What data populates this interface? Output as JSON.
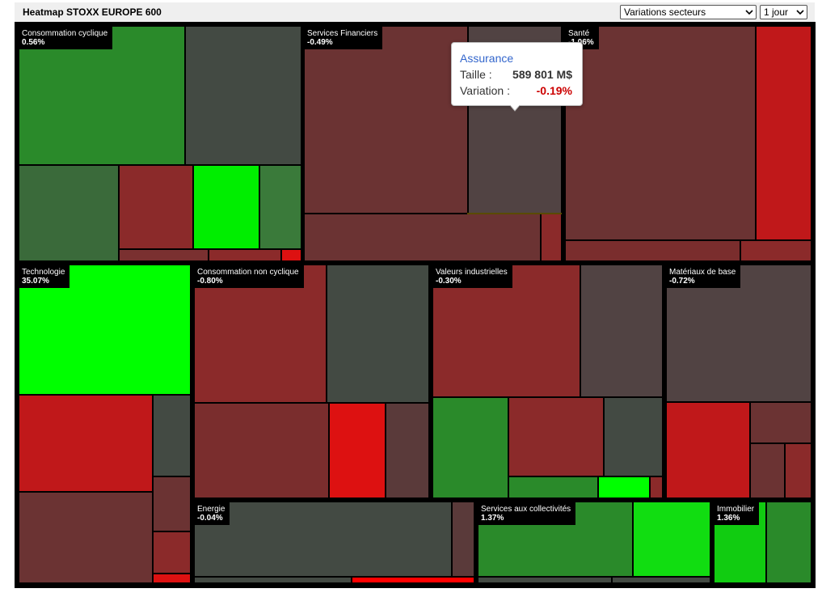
{
  "header": {
    "title": "Heatmap STOXX EUROPE 600"
  },
  "controls": {
    "mode_select": {
      "value": "Variations secteurs",
      "icon": "chevron-down-icon"
    },
    "period_select": {
      "value": "1 jour",
      "icon": "chevron-down-icon"
    }
  },
  "sectors": [
    {
      "name": "Consommation cyclique",
      "change": "0.56%"
    },
    {
      "name": "Services Financiers",
      "change": "-0.49%"
    },
    {
      "name": "Santé",
      "change": "-1.06%"
    },
    {
      "name": "Technologie",
      "change": "35.07%"
    },
    {
      "name": "Consommation non cyclique",
      "change": "-0.80%"
    },
    {
      "name": "Valeurs industrielles",
      "change": "-0.30%"
    },
    {
      "name": "Matériaux de base",
      "change": "-0.72%"
    },
    {
      "name": "Energie",
      "change": "-0.04%"
    },
    {
      "name": "Services aux collectivités",
      "change": "1.37%"
    },
    {
      "name": "Immobilier",
      "change": "1.36%"
    }
  ],
  "tooltip": {
    "title": "Assurance",
    "size_label": "Taille :",
    "size_value": "589 801 M$",
    "variation_label": "Variation :",
    "variation_value": "-0.19%",
    "variation_color": "#cc0000"
  },
  "colors": {
    "strong_up": "#00ff00",
    "up": "#2a8a2a",
    "flat": "#434a43",
    "down": "#8b2a2a",
    "strong_down": "#dd1111"
  }
}
